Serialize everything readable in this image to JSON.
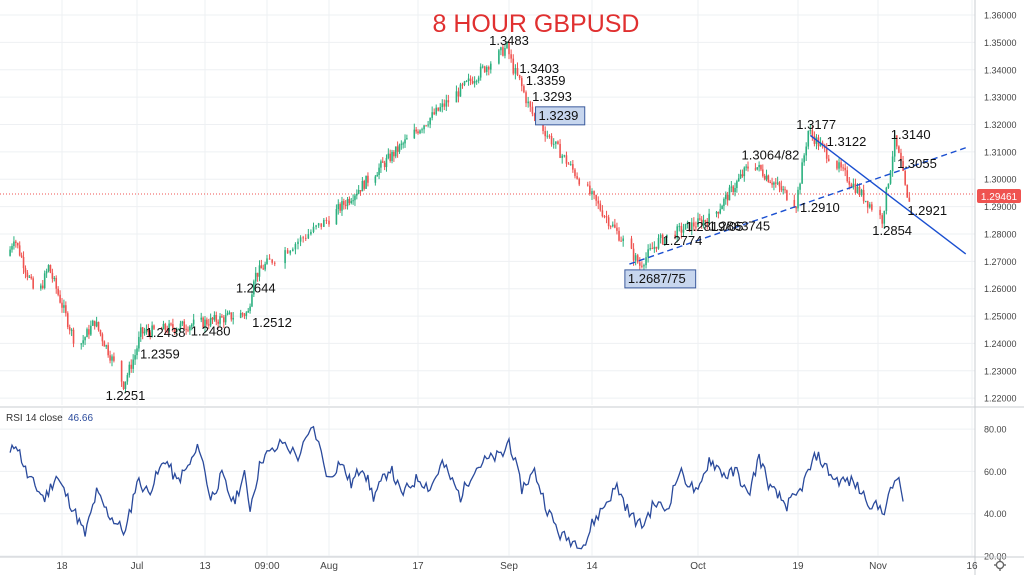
{
  "chart_data": [
    {
      "type": "candlestick",
      "title": "8 HOUR GBPUSD",
      "title_color": "#e03030",
      "symbol": "GBPUSD",
      "timeframe": "8 hour",
      "current_price_label": "1.29461",
      "current_price": 1.29461,
      "ylim": [
        1.2175,
        1.3655
      ],
      "y_ticks": [
        "1.22000",
        "1.23000",
        "1.24000",
        "1.25000",
        "1.26000",
        "1.27000",
        "1.28000",
        "1.29000",
        "1.30000",
        "1.31000",
        "1.32000",
        "1.33000",
        "1.34000",
        "1.35000",
        "1.36000"
      ],
      "y_tick_values": [
        1.22,
        1.23,
        1.24,
        1.25,
        1.26,
        1.27,
        1.28,
        1.29,
        1.3,
        1.31,
        1.32,
        1.33,
        1.34,
        1.35,
        1.36
      ],
      "colors": {
        "up": "#2bb07f",
        "down": "#ef5350",
        "trendline": "#1a4fd0",
        "grid": "#eef0f3",
        "axis_text": "#444444"
      },
      "key_prices": [
        {
          "x": "2020-06-29",
          "y": 1.2251,
          "label": "1.2251"
        },
        {
          "x": "2020-07-01",
          "y": 1.2359,
          "label": "1.2359"
        },
        {
          "x": "2020-07-02",
          "y": 1.2438,
          "label": "1.2438"
        },
        {
          "x": "2020-07-14",
          "y": 1.248,
          "label": "1.2480"
        },
        {
          "x": "2020-07-21",
          "y": 1.2512,
          "label": "1.2512"
        },
        {
          "x": "2020-07-22",
          "y": 1.2644,
          "label": "1.2644"
        },
        {
          "x": "2020-09-01",
          "y": 1.3483,
          "label": "1.3483"
        },
        {
          "x": "2020-09-02",
          "y": 1.3403,
          "label": "1.3403"
        },
        {
          "x": "2020-09-03",
          "y": 1.3359,
          "label": "1.3359"
        },
        {
          "x": "2020-09-04",
          "y": 1.3293,
          "label": "1.3293"
        },
        {
          "x": "2020-09-05",
          "y": 1.3239,
          "label": "1.3239",
          "boxed": true
        },
        {
          "x": "2020-09-22",
          "y": 1.2687,
          "label": "1.2687/75",
          "boxed": true
        },
        {
          "x": "2020-09-25",
          "y": 1.2774,
          "label": "1.2774"
        },
        {
          "x": "2020-09-29",
          "y": 1.2819,
          "label": "1.2819/05"
        },
        {
          "x": "2020-10-04",
          "y": 1.2863,
          "label": "1.2863745"
        },
        {
          "x": "2020-10-11",
          "y": 1.3064,
          "label": "1.3064/82"
        },
        {
          "x": "2020-10-19",
          "y": 1.291,
          "label": "1.2910"
        },
        {
          "x": "2020-10-21",
          "y": 1.3177,
          "label": "1.3177"
        },
        {
          "x": "2020-10-23",
          "y": 1.3122,
          "label": "1.3122"
        },
        {
          "x": "2020-11-02",
          "y": 1.2854,
          "label": "1.2854"
        },
        {
          "x": "2020-11-04",
          "y": 1.314,
          "label": "1.3140"
        },
        {
          "x": "2020-11-05",
          "y": 1.3055,
          "label": "1.3055"
        },
        {
          "x": "2020-11-06",
          "y": 1.2921,
          "label": "1.2921"
        }
      ],
      "trendlines": [
        {
          "style": "dashed",
          "from": {
            "x": "2020-09-20",
            "y": 1.269
          },
          "to": {
            "x": "2020-11-15",
            "y": 1.3115
          }
        },
        {
          "style": "solid",
          "from": {
            "x": "2020-10-21",
            "y": 1.316
          },
          "to": {
            "x": "2020-11-15",
            "y": 1.2727
          }
        }
      ]
    },
    {
      "type": "line",
      "title": "RSI 14 close",
      "last_value_label": "46.66",
      "last_value": 46.66,
      "color": "#2a4a9c",
      "ylim": [
        20,
        90
      ],
      "y_ticks": [
        "80.00",
        "60.00",
        "40.00",
        "20.00"
      ],
      "y_tick_values": [
        80,
        60,
        40,
        20
      ],
      "x_ticks": [
        "18",
        "Jul",
        "13",
        "09:00",
        "Aug",
        "17",
        "Sep",
        "14",
        "Oct",
        "19",
        "Nov",
        "16"
      ],
      "x_tick_dates": [
        "2020-06-18",
        "2020-07-01",
        "2020-07-13",
        "2020-07-24",
        "2020-08-01",
        "2020-08-17",
        "2020-09-01",
        "2020-09-14",
        "2020-10-01",
        "2020-10-19",
        "2020-11-01",
        "2020-11-16"
      ],
      "x_range": [
        "2020-06-09",
        "2020-11-21"
      ],
      "series_anchors": [
        {
          "x": "2020-06-09",
          "y": 68
        },
        {
          "x": "2020-06-10",
          "y": 74
        },
        {
          "x": "2020-06-12",
          "y": 58
        },
        {
          "x": "2020-06-15",
          "y": 47
        },
        {
          "x": "2020-06-17",
          "y": 58
        },
        {
          "x": "2020-06-20",
          "y": 42
        },
        {
          "x": "2020-06-22",
          "y": 30
        },
        {
          "x": "2020-06-24",
          "y": 50
        },
        {
          "x": "2020-06-26",
          "y": 40
        },
        {
          "x": "2020-06-29",
          "y": 31
        },
        {
          "x": "2020-07-01",
          "y": 56
        },
        {
          "x": "2020-07-03",
          "y": 50
        },
        {
          "x": "2020-07-06",
          "y": 66
        },
        {
          "x": "2020-07-08",
          "y": 55
        },
        {
          "x": "2020-07-10",
          "y": 62
        },
        {
          "x": "2020-07-12",
          "y": 72
        },
        {
          "x": "2020-07-14",
          "y": 47
        },
        {
          "x": "2020-07-16",
          "y": 58
        },
        {
          "x": "2020-07-18",
          "y": 45
        },
        {
          "x": "2020-07-20",
          "y": 58
        },
        {
          "x": "2020-07-21",
          "y": 43
        },
        {
          "x": "2020-07-23",
          "y": 66
        },
        {
          "x": "2020-07-25",
          "y": 70
        },
        {
          "x": "2020-07-26",
          "y": 74
        },
        {
          "x": "2020-07-28",
          "y": 67
        },
        {
          "x": "2020-07-30",
          "y": 81
        },
        {
          "x": "2020-08-01",
          "y": 56
        },
        {
          "x": "2020-08-03",
          "y": 65
        },
        {
          "x": "2020-08-05",
          "y": 54
        },
        {
          "x": "2020-08-07",
          "y": 63
        },
        {
          "x": "2020-08-09",
          "y": 48
        },
        {
          "x": "2020-08-12",
          "y": 62
        },
        {
          "x": "2020-08-14",
          "y": 49
        },
        {
          "x": "2020-08-17",
          "y": 57
        },
        {
          "x": "2020-08-19",
          "y": 52
        },
        {
          "x": "2020-08-21",
          "y": 64
        },
        {
          "x": "2020-08-24",
          "y": 48
        },
        {
          "x": "2020-08-26",
          "y": 60
        },
        {
          "x": "2020-08-28",
          "y": 65
        },
        {
          "x": "2020-08-31",
          "y": 68
        },
        {
          "x": "2020-09-01",
          "y": 75
        },
        {
          "x": "2020-09-03",
          "y": 52
        },
        {
          "x": "2020-09-05",
          "y": 60
        },
        {
          "x": "2020-09-07",
          "y": 42
        },
        {
          "x": "2020-09-09",
          "y": 30
        },
        {
          "x": "2020-09-11",
          "y": 27
        },
        {
          "x": "2020-09-13",
          "y": 26
        },
        {
          "x": "2020-09-14",
          "y": 35
        },
        {
          "x": "2020-09-16",
          "y": 44
        },
        {
          "x": "2020-09-18",
          "y": 53
        },
        {
          "x": "2020-09-20",
          "y": 40
        },
        {
          "x": "2020-09-22",
          "y": 34
        },
        {
          "x": "2020-09-24",
          "y": 45
        },
        {
          "x": "2020-09-26",
          "y": 42
        },
        {
          "x": "2020-09-28",
          "y": 60
        },
        {
          "x": "2020-10-01",
          "y": 49
        },
        {
          "x": "2020-10-03",
          "y": 66
        },
        {
          "x": "2020-10-06",
          "y": 58
        },
        {
          "x": "2020-10-08",
          "y": 60
        },
        {
          "x": "2020-10-10",
          "y": 48
        },
        {
          "x": "2020-10-12",
          "y": 67
        },
        {
          "x": "2020-10-14",
          "y": 52
        },
        {
          "x": "2020-10-17",
          "y": 44
        },
        {
          "x": "2020-10-19",
          "y": 49
        },
        {
          "x": "2020-10-22",
          "y": 68
        },
        {
          "x": "2020-10-25",
          "y": 56
        },
        {
          "x": "2020-10-28",
          "y": 55
        },
        {
          "x": "2020-10-31",
          "y": 44
        },
        {
          "x": "2020-11-02",
          "y": 42
        },
        {
          "x": "2020-11-04",
          "y": 58
        },
        {
          "x": "2020-11-05",
          "y": 46.66
        }
      ]
    }
  ]
}
